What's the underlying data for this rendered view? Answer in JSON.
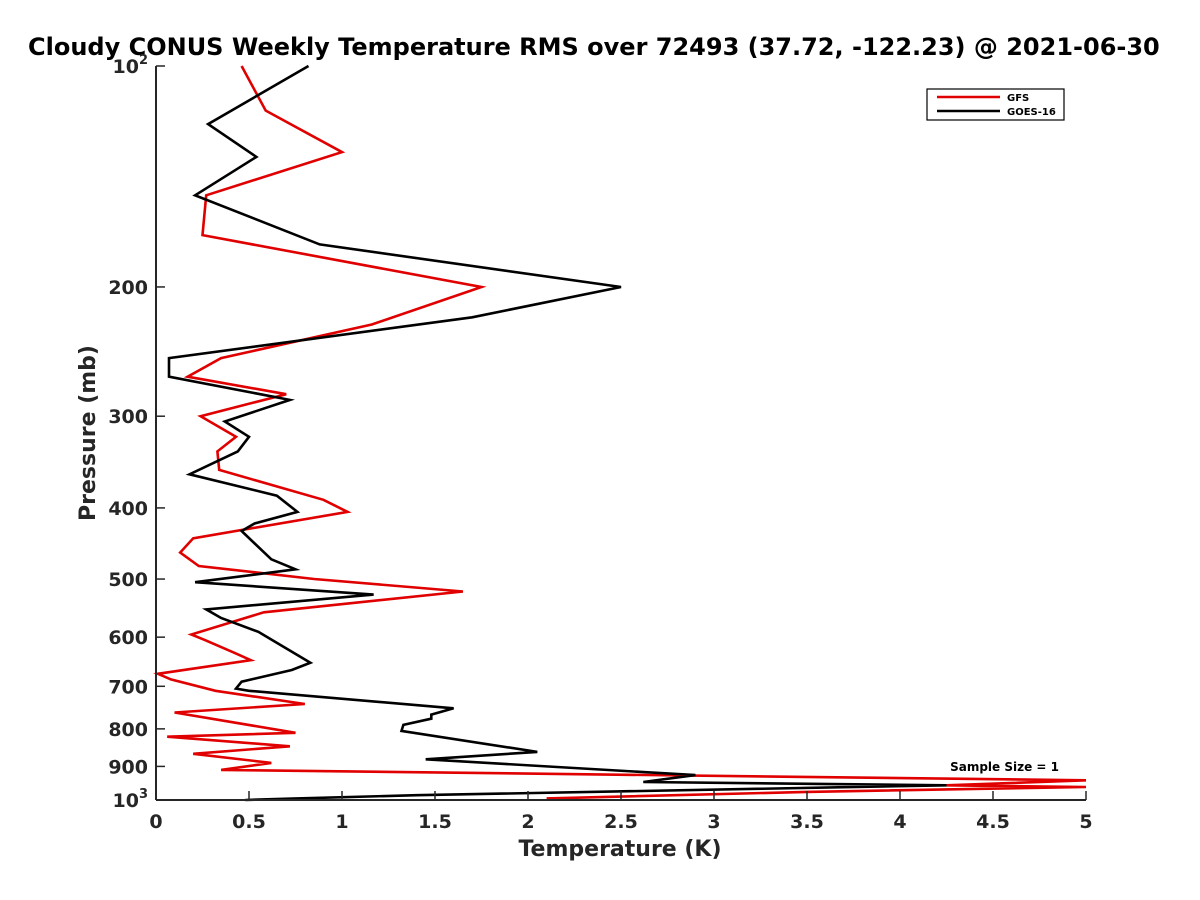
{
  "chart_data": {
    "type": "line",
    "title": "Cloudy CONUS Weekly Temperature RMS over 72493 (37.72, -122.23) @ 2021-06-30",
    "xlabel": "Temperature (K)",
    "ylabel": "Pressure (mb)",
    "xlim": [
      0,
      5
    ],
    "ylim": [
      100,
      1000
    ],
    "yscale": "log",
    "y_reversed": true,
    "grid": false,
    "legend_position": "top-right",
    "x_ticks": [
      "0",
      "0.5",
      "1",
      "1.5",
      "2",
      "2.5",
      "3",
      "3.5",
      "4",
      "4.5",
      "5"
    ],
    "y_ticks": [
      {
        "value": 100,
        "base": "10",
        "exp": "2"
      },
      {
        "value": 200,
        "label": "200"
      },
      {
        "value": 300,
        "label": "300"
      },
      {
        "value": 400,
        "label": "400"
      },
      {
        "value": 500,
        "label": "500"
      },
      {
        "value": 600,
        "label": "600"
      },
      {
        "value": 700,
        "label": "700"
      },
      {
        "value": 800,
        "label": "800"
      },
      {
        "value": 900,
        "label": "900"
      },
      {
        "value": 1000,
        "base": "10",
        "exp": "3"
      }
    ],
    "annotation": "Sample Size = 1",
    "series": [
      {
        "name": "GFS",
        "color": "#e00000",
        "points": [
          [
            0.46,
            100
          ],
          [
            0.59,
            115
          ],
          [
            1.0,
            131
          ],
          [
            0.27,
            150
          ],
          [
            0.25,
            170
          ],
          [
            1.75,
            200
          ],
          [
            1.16,
            225
          ],
          [
            0.35,
            250
          ],
          [
            0.17,
            265
          ],
          [
            0.7,
            280
          ],
          [
            0.24,
            300
          ],
          [
            0.43,
            320
          ],
          [
            0.33,
            335
          ],
          [
            0.34,
            355
          ],
          [
            0.9,
            390
          ],
          [
            1.03,
            405
          ],
          [
            0.2,
            440
          ],
          [
            0.13,
            460
          ],
          [
            0.23,
            480
          ],
          [
            0.85,
            500
          ],
          [
            1.65,
            520
          ],
          [
            0.58,
            555
          ],
          [
            0.19,
            595
          ],
          [
            0.26,
            605
          ],
          [
            0.42,
            630
          ],
          [
            0.51,
            645
          ],
          [
            0.01,
            673
          ],
          [
            0.08,
            685
          ],
          [
            0.32,
            710
          ],
          [
            0.8,
            740
          ],
          [
            0.1,
            760
          ],
          [
            0.75,
            810
          ],
          [
            0.06,
            820
          ],
          [
            0.72,
            845
          ],
          [
            0.2,
            865
          ],
          [
            0.62,
            890
          ],
          [
            0.35,
            910
          ],
          [
            5.0,
            940
          ],
          [
            4.25,
            955
          ],
          [
            5.0,
            960
          ],
          [
            3.5,
            975
          ],
          [
            2.1,
            995
          ]
        ]
      },
      {
        "name": "GOES-16",
        "color": "#000000",
        "points": [
          [
            0.82,
            100
          ],
          [
            0.28,
            120
          ],
          [
            0.54,
            133
          ],
          [
            0.21,
            150
          ],
          [
            0.88,
            175
          ],
          [
            2.5,
            200
          ],
          [
            1.7,
            220
          ],
          [
            0.07,
            250
          ],
          [
            0.07,
            265
          ],
          [
            0.72,
            285
          ],
          [
            0.37,
            305
          ],
          [
            0.5,
            320
          ],
          [
            0.44,
            335
          ],
          [
            0.18,
            360
          ],
          [
            0.65,
            385
          ],
          [
            0.76,
            405
          ],
          [
            0.53,
            420
          ],
          [
            0.46,
            430
          ],
          [
            0.62,
            470
          ],
          [
            0.75,
            485
          ],
          [
            0.21,
            505
          ],
          [
            1.17,
            525
          ],
          [
            0.27,
            550
          ],
          [
            0.35,
            565
          ],
          [
            0.55,
            590
          ],
          [
            0.83,
            650
          ],
          [
            0.73,
            665
          ],
          [
            0.46,
            690
          ],
          [
            0.43,
            705
          ],
          [
            0.5,
            710
          ],
          [
            1.6,
            750
          ],
          [
            1.48,
            765
          ],
          [
            1.48,
            775
          ],
          [
            1.33,
            790
          ],
          [
            1.32,
            805
          ],
          [
            2.05,
            860
          ],
          [
            1.45,
            880
          ],
          [
            2.9,
            925
          ],
          [
            2.62,
            945
          ],
          [
            4.25,
            955
          ],
          [
            1.4,
            985
          ],
          [
            0.76,
            995
          ],
          [
            0.48,
            1000
          ]
        ]
      }
    ]
  }
}
